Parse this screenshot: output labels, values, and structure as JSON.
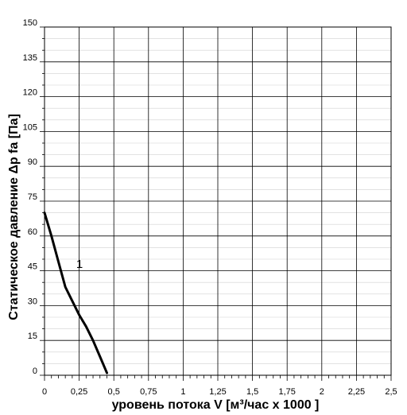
{
  "chart_data": {
    "type": "line",
    "xlabel": "уровень потока  V [м³/час x 1000 ]",
    "ylabel": "Статическое давление  Δp fa [Па]",
    "xlim": [
      0,
      2.5
    ],
    "ylim": [
      0,
      150
    ],
    "x_ticks": [
      "0",
      "0,25",
      "0,5",
      "0,75",
      "1",
      "1,25",
      "1,5",
      "1,75",
      "2",
      "2,25",
      "2,5"
    ],
    "y_ticks": [
      "0",
      "15",
      "30",
      "45",
      "60",
      "75",
      "90",
      "105",
      "120",
      "135",
      "150"
    ],
    "grid": true,
    "series": [
      {
        "name": "1",
        "color": "#000000",
        "x": [
          0.0,
          0.05,
          0.1,
          0.15,
          0.2,
          0.25,
          0.3,
          0.35,
          0.4,
          0.45
        ],
        "y": [
          70,
          60,
          49,
          38,
          32,
          26,
          21,
          15,
          8,
          1
        ]
      }
    ]
  }
}
